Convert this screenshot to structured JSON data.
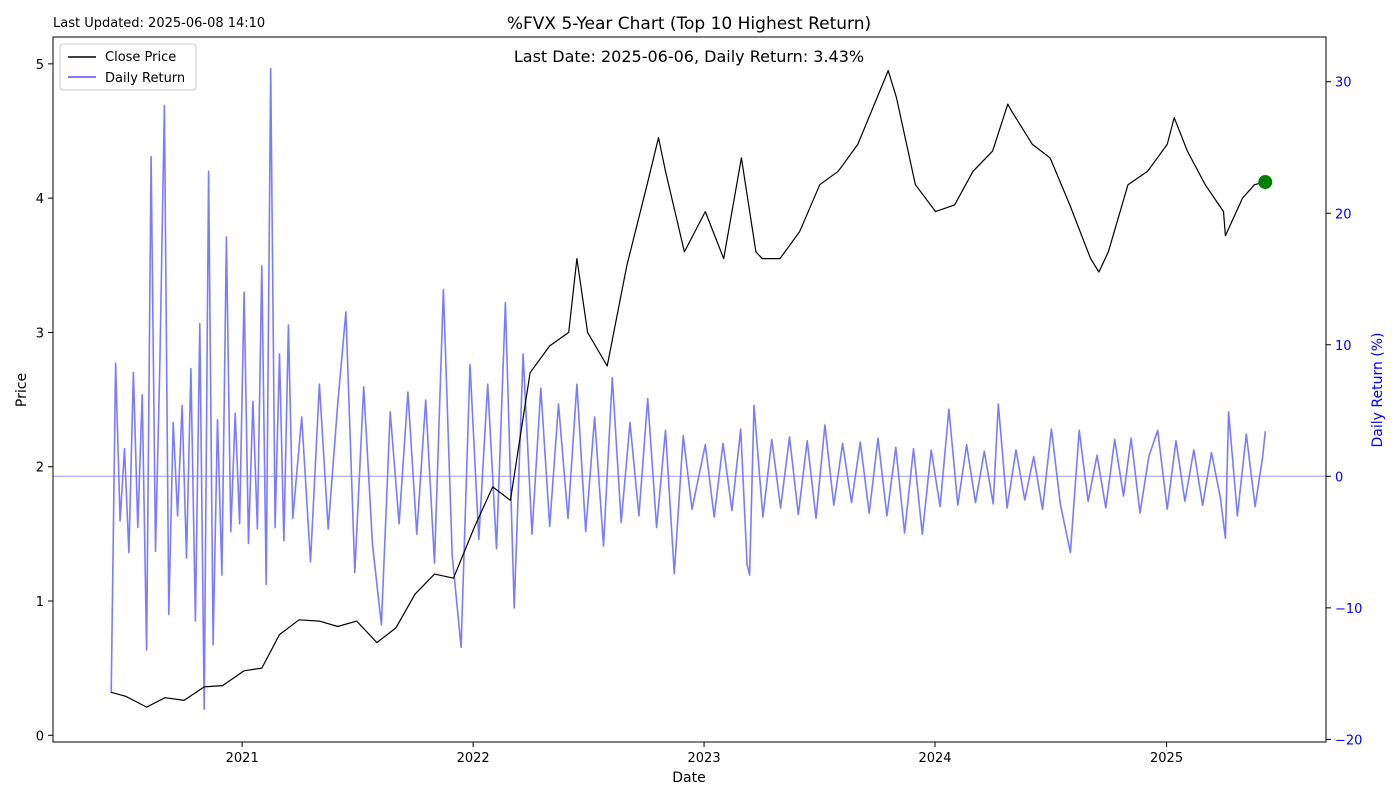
{
  "page": {
    "last_updated": "Last Updated: 2025-06-08 14:10"
  },
  "chart_data": {
    "type": "line",
    "title": "%FVX 5-Year Chart (Top 10 Highest Return)",
    "subtitle": "Last Date: 2025-06-06, Daily Return: 3.43%",
    "xlabel": "Date",
    "ylabel": "Price",
    "y2label": "Daily Return (%)",
    "xlim": [
      "2020-03-08",
      "2025-09-10"
    ],
    "ylim": [
      -0.05,
      5.2
    ],
    "y2lim": [
      -20.2,
      33.4
    ],
    "x_ticks": [
      "2021",
      "2022",
      "2023",
      "2024",
      "2025"
    ],
    "y_ticks": [
      0,
      1,
      2,
      3,
      4,
      5
    ],
    "y2_ticks": [
      -20,
      -10,
      0,
      10,
      20,
      30
    ],
    "grid": false,
    "legend": {
      "placement": "top-left",
      "entries": [
        "Close Price",
        "Daily Return"
      ]
    },
    "colors": {
      "close": "#000000",
      "return": "#7b7bff",
      "marker": "#008000",
      "zero_line": "#8080ff",
      "right_axis": "#0000ff"
    },
    "last_point": {
      "date": "2025-06-06",
      "close": 4.12,
      "daily_return": 3.43
    },
    "series": [
      {
        "name": "Close Price",
        "axis": "left",
        "points": [
          [
            "2020-06-08",
            0.32
          ],
          [
            "2020-07-01",
            0.29
          ],
          [
            "2020-08-03",
            0.21
          ],
          [
            "2020-09-01",
            0.28
          ],
          [
            "2020-10-01",
            0.26
          ],
          [
            "2020-11-02",
            0.36
          ],
          [
            "2020-12-01",
            0.37
          ],
          [
            "2021-01-04",
            0.48
          ],
          [
            "2021-02-01",
            0.5
          ],
          [
            "2021-03-01",
            0.75
          ],
          [
            "2021-04-01",
            0.86
          ],
          [
            "2021-05-03",
            0.85
          ],
          [
            "2021-06-01",
            0.81
          ],
          [
            "2021-07-01",
            0.85
          ],
          [
            "2021-08-02",
            0.69
          ],
          [
            "2021-09-01",
            0.8
          ],
          [
            "2021-10-01",
            1.05
          ],
          [
            "2021-11-01",
            1.2
          ],
          [
            "2021-12-01",
            1.17
          ],
          [
            "2022-01-03",
            1.55
          ],
          [
            "2022-02-01",
            1.85
          ],
          [
            "2022-03-01",
            1.75
          ],
          [
            "2022-04-01",
            2.7
          ],
          [
            "2022-05-02",
            2.9
          ],
          [
            "2022-06-01",
            3.0
          ],
          [
            "2022-06-14",
            3.55
          ],
          [
            "2022-07-01",
            3.0
          ],
          [
            "2022-08-01",
            2.75
          ],
          [
            "2022-09-01",
            3.5
          ],
          [
            "2022-10-03",
            4.1
          ],
          [
            "2022-10-21",
            4.45
          ],
          [
            "2022-11-01",
            4.2
          ],
          [
            "2022-12-01",
            3.6
          ],
          [
            "2023-01-03",
            3.9
          ],
          [
            "2023-02-01",
            3.55
          ],
          [
            "2023-03-01",
            4.3
          ],
          [
            "2023-03-24",
            3.6
          ],
          [
            "2023-04-03",
            3.55
          ],
          [
            "2023-05-01",
            3.55
          ],
          [
            "2023-06-01",
            3.75
          ],
          [
            "2023-07-03",
            4.1
          ],
          [
            "2023-08-01",
            4.2
          ],
          [
            "2023-09-01",
            4.4
          ],
          [
            "2023-10-19",
            4.95
          ],
          [
            "2023-11-01",
            4.75
          ],
          [
            "2023-12-01",
            4.1
          ],
          [
            "2024-01-02",
            3.9
          ],
          [
            "2024-02-01",
            3.95
          ],
          [
            "2024-03-01",
            4.2
          ],
          [
            "2024-04-01",
            4.35
          ],
          [
            "2024-04-25",
            4.7
          ],
          [
            "2024-05-01",
            4.65
          ],
          [
            "2024-06-03",
            4.4
          ],
          [
            "2024-07-01",
            4.3
          ],
          [
            "2024-08-01",
            3.95
          ],
          [
            "2024-09-03",
            3.55
          ],
          [
            "2024-09-16",
            3.45
          ],
          [
            "2024-10-01",
            3.6
          ],
          [
            "2024-11-01",
            4.1
          ],
          [
            "2024-12-02",
            4.2
          ],
          [
            "2025-01-02",
            4.4
          ],
          [
            "2025-01-13",
            4.6
          ],
          [
            "2025-02-03",
            4.35
          ],
          [
            "2025-03-03",
            4.1
          ],
          [
            "2025-04-01",
            3.9
          ],
          [
            "2025-04-04",
            3.72
          ],
          [
            "2025-05-01",
            4.0
          ],
          [
            "2025-05-20",
            4.1
          ],
          [
            "2025-06-06",
            4.12
          ]
        ]
      },
      {
        "name": "Daily Return",
        "axis": "right",
        "points": [
          [
            "2020-06-08",
            -16.5
          ],
          [
            "2020-06-15",
            8.6
          ],
          [
            "2020-06-22",
            -3.4
          ],
          [
            "2020-06-29",
            2.1
          ],
          [
            "2020-07-06",
            -5.8
          ],
          [
            "2020-07-13",
            7.9
          ],
          [
            "2020-07-20",
            -3.9
          ],
          [
            "2020-07-27",
            6.2
          ],
          [
            "2020-08-03",
            -13.2
          ],
          [
            "2020-08-10",
            24.3
          ],
          [
            "2020-08-17",
            -5.7
          ],
          [
            "2020-08-24",
            8.7
          ],
          [
            "2020-08-31",
            28.2
          ],
          [
            "2020-09-07",
            -10.5
          ],
          [
            "2020-09-14",
            4.1
          ],
          [
            "2020-09-21",
            -3.0
          ],
          [
            "2020-09-28",
            5.4
          ],
          [
            "2020-10-05",
            -6.2
          ],
          [
            "2020-10-12",
            8.2
          ],
          [
            "2020-10-19",
            -11.0
          ],
          [
            "2020-10-26",
            11.6
          ],
          [
            "2020-11-02",
            -17.7
          ],
          [
            "2020-11-09",
            23.2
          ],
          [
            "2020-11-16",
            -12.8
          ],
          [
            "2020-11-23",
            4.3
          ],
          [
            "2020-11-30",
            -7.5
          ],
          [
            "2020-12-07",
            18.2
          ],
          [
            "2020-12-14",
            -4.2
          ],
          [
            "2020-12-21",
            4.8
          ],
          [
            "2020-12-28",
            -3.6
          ],
          [
            "2021-01-04",
            14.0
          ],
          [
            "2021-01-11",
            -5.1
          ],
          [
            "2021-01-18",
            5.7
          ],
          [
            "2021-01-25",
            -4.0
          ],
          [
            "2021-02-01",
            16.0
          ],
          [
            "2021-02-08",
            -8.2
          ],
          [
            "2021-02-15",
            31.0
          ],
          [
            "2021-02-22",
            -3.9
          ],
          [
            "2021-03-01",
            9.3
          ],
          [
            "2021-03-08",
            -4.9
          ],
          [
            "2021-03-15",
            11.5
          ],
          [
            "2021-03-22",
            -3.2
          ],
          [
            "2021-04-05",
            4.5
          ],
          [
            "2021-04-19",
            -6.5
          ],
          [
            "2021-05-03",
            7.0
          ],
          [
            "2021-05-17",
            -4.0
          ],
          [
            "2021-06-01",
            5.5
          ],
          [
            "2021-06-14",
            12.5
          ],
          [
            "2021-06-28",
            -7.3
          ],
          [
            "2021-07-12",
            6.8
          ],
          [
            "2021-07-26",
            -5.2
          ],
          [
            "2021-08-09",
            -11.3
          ],
          [
            "2021-08-23",
            4.9
          ],
          [
            "2021-09-06",
            -3.6
          ],
          [
            "2021-09-20",
            6.4
          ],
          [
            "2021-10-04",
            -4.4
          ],
          [
            "2021-10-18",
            5.8
          ],
          [
            "2021-11-01",
            -6.6
          ],
          [
            "2021-11-15",
            14.2
          ],
          [
            "2021-11-29",
            -6.0
          ],
          [
            "2021-12-13",
            -13.0
          ],
          [
            "2021-12-27",
            8.5
          ],
          [
            "2022-01-10",
            -4.8
          ],
          [
            "2022-01-24",
            7.0
          ],
          [
            "2022-02-07",
            -5.5
          ],
          [
            "2022-02-21",
            13.2
          ],
          [
            "2022-03-07",
            -10.0
          ],
          [
            "2022-03-21",
            9.3
          ],
          [
            "2022-04-04",
            -4.4
          ],
          [
            "2022-04-18",
            6.7
          ],
          [
            "2022-05-02",
            -3.8
          ],
          [
            "2022-05-16",
            5.5
          ],
          [
            "2022-05-31",
            -3.2
          ],
          [
            "2022-06-14",
            7.0
          ],
          [
            "2022-06-28",
            -4.2
          ],
          [
            "2022-07-12",
            4.5
          ],
          [
            "2022-07-26",
            -5.3
          ],
          [
            "2022-08-09",
            7.5
          ],
          [
            "2022-08-23",
            -3.5
          ],
          [
            "2022-09-06",
            4.1
          ],
          [
            "2022-09-20",
            -3.0
          ],
          [
            "2022-10-04",
            5.9
          ],
          [
            "2022-10-18",
            -3.9
          ],
          [
            "2022-11-01",
            3.5
          ],
          [
            "2022-11-15",
            -7.4
          ],
          [
            "2022-11-29",
            3.1
          ],
          [
            "2022-12-13",
            -2.5
          ],
          [
            "2023-01-03",
            2.4
          ],
          [
            "2023-01-17",
            -3.1
          ],
          [
            "2023-01-31",
            2.5
          ],
          [
            "2023-02-14",
            -2.6
          ],
          [
            "2023-02-28",
            3.6
          ],
          [
            "2023-03-10",
            -6.7
          ],
          [
            "2023-03-14",
            -7.5
          ],
          [
            "2023-03-21",
            5.4
          ],
          [
            "2023-04-04",
            -3.1
          ],
          [
            "2023-04-18",
            2.8
          ],
          [
            "2023-05-02",
            -2.4
          ],
          [
            "2023-05-16",
            3.0
          ],
          [
            "2023-05-30",
            -2.9
          ],
          [
            "2023-06-13",
            2.7
          ],
          [
            "2023-06-27",
            -3.2
          ],
          [
            "2023-07-11",
            3.9
          ],
          [
            "2023-07-25",
            -2.2
          ],
          [
            "2023-08-08",
            2.5
          ],
          [
            "2023-08-22",
            -2.0
          ],
          [
            "2023-09-05",
            2.6
          ],
          [
            "2023-09-19",
            -2.8
          ],
          [
            "2023-10-03",
            2.9
          ],
          [
            "2023-10-17",
            -3.0
          ],
          [
            "2023-10-31",
            2.2
          ],
          [
            "2023-11-14",
            -4.3
          ],
          [
            "2023-11-28",
            2.1
          ],
          [
            "2023-12-12",
            -4.4
          ],
          [
            "2023-12-26",
            2.0
          ],
          [
            "2024-01-09",
            -2.3
          ],
          [
            "2024-01-23",
            5.1
          ],
          [
            "2024-02-06",
            -2.2
          ],
          [
            "2024-02-20",
            2.4
          ],
          [
            "2024-03-05",
            -2.0
          ],
          [
            "2024-03-19",
            1.9
          ],
          [
            "2024-04-02",
            -2.1
          ],
          [
            "2024-04-10",
            5.5
          ],
          [
            "2024-04-24",
            -2.4
          ],
          [
            "2024-05-08",
            2.0
          ],
          [
            "2024-05-22",
            -1.8
          ],
          [
            "2024-06-05",
            1.5
          ],
          [
            "2024-06-19",
            -2.5
          ],
          [
            "2024-07-03",
            3.6
          ],
          [
            "2024-07-17",
            -2.1
          ],
          [
            "2024-08-02",
            -5.8
          ],
          [
            "2024-08-16",
            3.5
          ],
          [
            "2024-08-30",
            -1.9
          ],
          [
            "2024-09-13",
            1.6
          ],
          [
            "2024-09-27",
            -2.4
          ],
          [
            "2024-10-11",
            2.8
          ],
          [
            "2024-10-25",
            -1.5
          ],
          [
            "2024-11-06",
            2.9
          ],
          [
            "2024-11-20",
            -2.8
          ],
          [
            "2024-12-04",
            1.5
          ],
          [
            "2024-12-18",
            3.5
          ],
          [
            "2025-01-02",
            -2.5
          ],
          [
            "2025-01-16",
            2.7
          ],
          [
            "2025-01-30",
            -1.9
          ],
          [
            "2025-02-13",
            2.0
          ],
          [
            "2025-02-27",
            -2.2
          ],
          [
            "2025-03-13",
            1.8
          ],
          [
            "2025-03-27",
            -1.6
          ],
          [
            "2025-04-04",
            -4.7
          ],
          [
            "2025-04-09",
            4.9
          ],
          [
            "2025-04-23",
            -3.0
          ],
          [
            "2025-05-07",
            3.2
          ],
          [
            "2025-05-21",
            -2.3
          ],
          [
            "2025-06-02",
            1.5
          ],
          [
            "2025-06-06",
            3.43
          ]
        ]
      }
    ]
  }
}
